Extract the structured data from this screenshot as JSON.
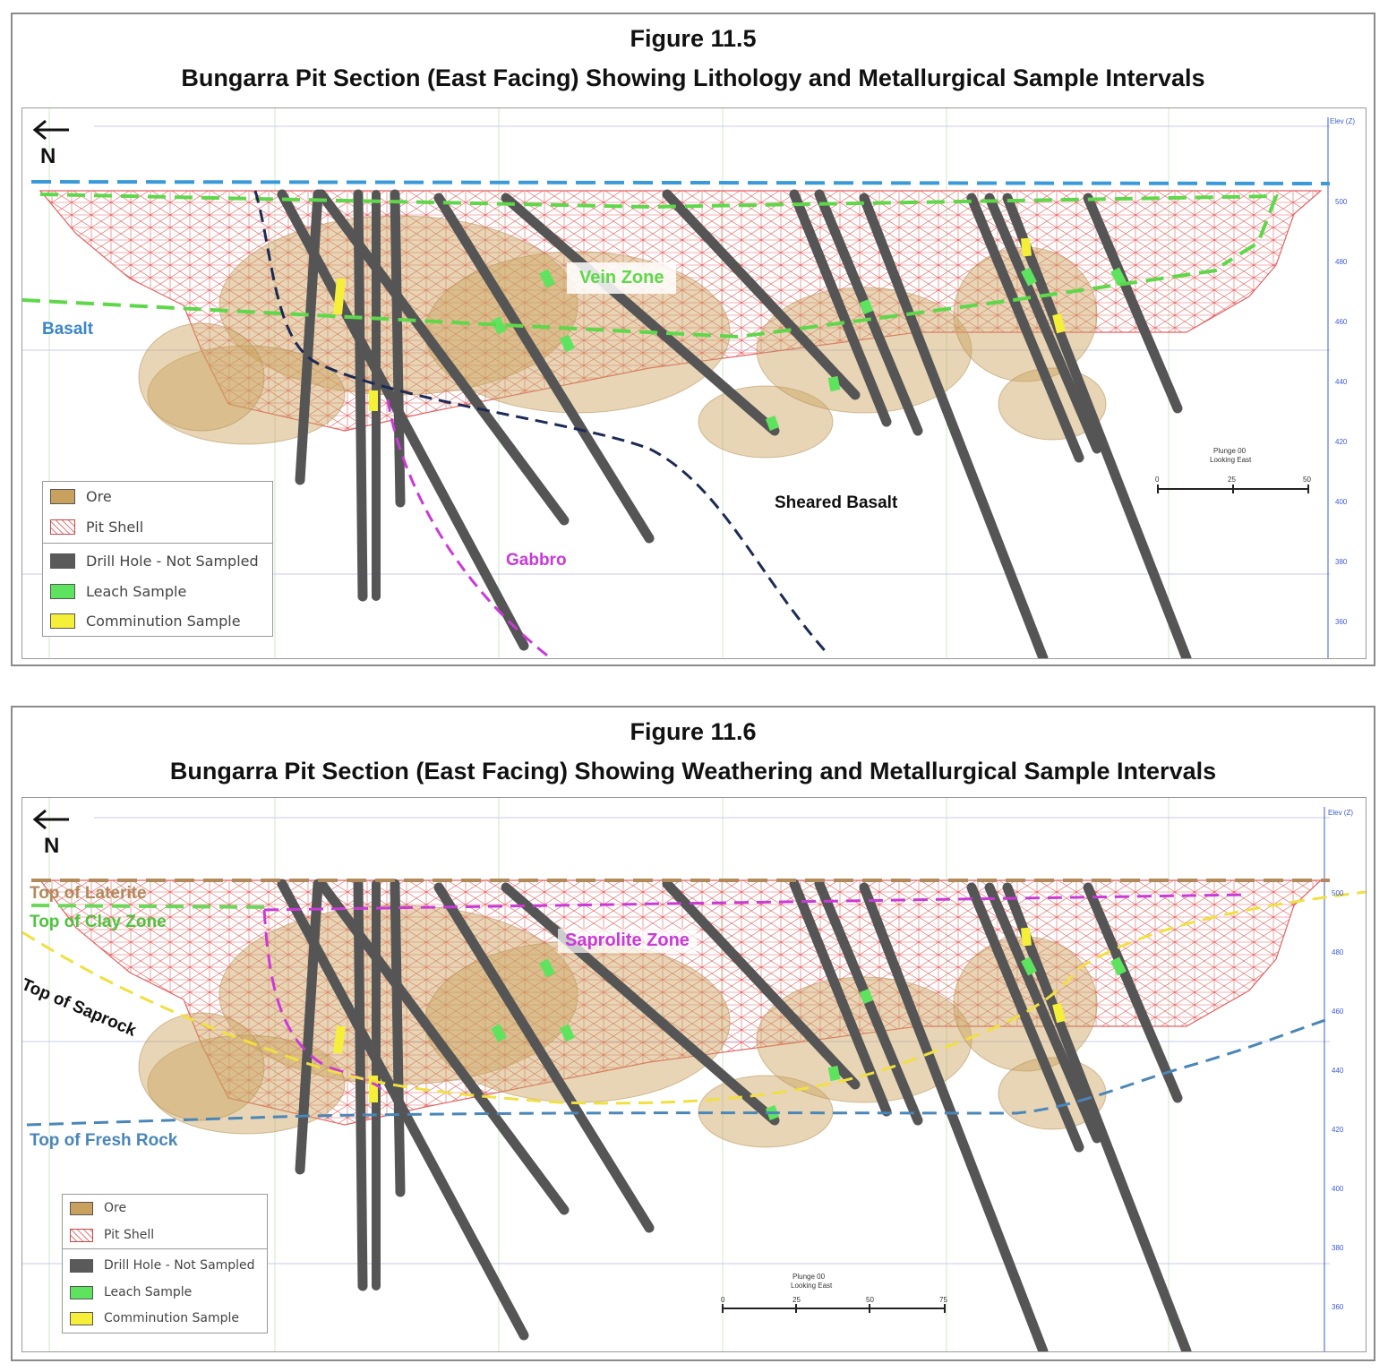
{
  "figures": [
    {
      "number": "Figure 11.5",
      "title": "Bungarra Pit Section (East Facing) Showing Lithology and Metallurgical Sample Intervals",
      "north_label": "N",
      "labels": {
        "vein_zone": "Vein Zone",
        "basalt": "Basalt",
        "sheared_basalt": "Sheared Basalt",
        "gabbro": "Gabbro"
      },
      "elevation_axis": {
        "header": "Elev (Z)",
        "ticks": [
          "500",
          "480",
          "460",
          "440",
          "420",
          "400",
          "380",
          "360"
        ]
      },
      "scale_bar": {
        "caption_line1": "Plunge 00",
        "caption_line2": "Looking East",
        "ticks": [
          "0",
          "25",
          "50"
        ]
      },
      "legend": [
        "Ore",
        "Pit Shell",
        "Drill Hole - Not Sampled",
        "Leach Sample",
        "Comminution Sample"
      ]
    },
    {
      "number": "Figure 11.6",
      "title": "Bungarra Pit Section (East Facing) Showing Weathering and Metallurgical Sample Intervals",
      "north_label": "N",
      "labels": {
        "top_of_laterite": "Top of Laterite",
        "top_of_clay_zone": "Top of Clay Zone",
        "top_of_saprock": "Top of Saprock",
        "saprolite_zone": "Saprolite Zone",
        "top_of_fresh_rock": "Top of Fresh Rock"
      },
      "elevation_axis": {
        "header": "Elev (Z)",
        "ticks": [
          "500",
          "480",
          "460",
          "440",
          "420",
          "400",
          "380",
          "360"
        ]
      },
      "scale_bar": {
        "caption_line1": "Plunge 00",
        "caption_line2": "Looking East",
        "ticks": [
          "0",
          "25",
          "50",
          "75"
        ]
      },
      "legend": [
        "Ore",
        "Pit Shell",
        "Drill Hole - Not Sampled",
        "Leach Sample",
        "Comminution Sample"
      ]
    }
  ],
  "colors": {
    "ore": "#c9a15e",
    "pit_shell": "#e05050",
    "drill_hole": "#555555",
    "leach": "#5ee35e",
    "comminution": "#f5ef3a",
    "basalt_contact": "#3a9ad9",
    "vein_zone": "#5ed84a",
    "shear": "#1c2a55",
    "gabbro": "#c93ad9",
    "laterite": "#b08a5a",
    "clay": "#6ad85a",
    "saprolite": "#c93ad9",
    "saprock": "#f0e040",
    "fresh_rock": "#4a86b8"
  }
}
